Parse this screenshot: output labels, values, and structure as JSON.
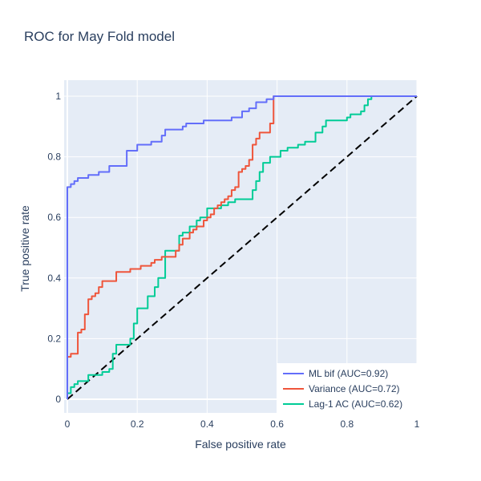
{
  "chart_data": {
    "type": "line",
    "title": "ROC for May Fold model",
    "xlabel": "False positive rate",
    "ylabel": "True positive rate",
    "xlim": [
      0,
      1
    ],
    "ylim": [
      0,
      1
    ],
    "grid": true,
    "legend_position": "bottom-right",
    "x_ticks": [
      {
        "value": 0,
        "label": "0"
      },
      {
        "value": 0.2,
        "label": "0.2"
      },
      {
        "value": 0.4,
        "label": "0.4"
      },
      {
        "value": 0.6,
        "label": "0.6"
      },
      {
        "value": 0.8,
        "label": "0.8"
      },
      {
        "value": 1,
        "label": "1"
      }
    ],
    "y_ticks": [
      {
        "value": 0,
        "label": "0"
      },
      {
        "value": 0.2,
        "label": "0.2"
      },
      {
        "value": 0.4,
        "label": "0.4"
      },
      {
        "value": 0.6,
        "label": "0.6"
      },
      {
        "value": 0.8,
        "label": "0.8"
      },
      {
        "value": 1,
        "label": "1"
      }
    ],
    "series": [
      {
        "name": "ML bif (AUC=0.92)",
        "color": "#636efa",
        "dash": "solid",
        "points": [
          [
            0,
            0
          ],
          [
            0,
            0.7
          ],
          [
            0.01,
            0.7
          ],
          [
            0.01,
            0.71
          ],
          [
            0.02,
            0.71
          ],
          [
            0.02,
            0.72
          ],
          [
            0.03,
            0.72
          ],
          [
            0.03,
            0.73
          ],
          [
            0.06,
            0.73
          ],
          [
            0.06,
            0.74
          ],
          [
            0.09,
            0.74
          ],
          [
            0.09,
            0.75
          ],
          [
            0.12,
            0.75
          ],
          [
            0.12,
            0.77
          ],
          [
            0.17,
            0.77
          ],
          [
            0.17,
            0.82
          ],
          [
            0.2,
            0.82
          ],
          [
            0.2,
            0.84
          ],
          [
            0.24,
            0.84
          ],
          [
            0.24,
            0.85
          ],
          [
            0.27,
            0.85
          ],
          [
            0.27,
            0.87
          ],
          [
            0.28,
            0.87
          ],
          [
            0.28,
            0.89
          ],
          [
            0.33,
            0.89
          ],
          [
            0.33,
            0.9
          ],
          [
            0.34,
            0.9
          ],
          [
            0.34,
            0.91
          ],
          [
            0.39,
            0.91
          ],
          [
            0.39,
            0.92
          ],
          [
            0.47,
            0.92
          ],
          [
            0.47,
            0.93
          ],
          [
            0.5,
            0.93
          ],
          [
            0.5,
            0.95
          ],
          [
            0.52,
            0.95
          ],
          [
            0.52,
            0.96
          ],
          [
            0.54,
            0.96
          ],
          [
            0.54,
            0.98
          ],
          [
            0.57,
            0.98
          ],
          [
            0.57,
            0.99
          ],
          [
            0.59,
            0.99
          ],
          [
            0.59,
            1.0
          ],
          [
            1.0,
            1.0
          ]
        ]
      },
      {
        "name": "Variance (AUC=0.72)",
        "color": "#ef553b",
        "dash": "solid",
        "points": [
          [
            0,
            0
          ],
          [
            0,
            0.14
          ],
          [
            0.01,
            0.14
          ],
          [
            0.01,
            0.15
          ],
          [
            0.03,
            0.15
          ],
          [
            0.03,
            0.22
          ],
          [
            0.04,
            0.22
          ],
          [
            0.04,
            0.23
          ],
          [
            0.05,
            0.23
          ],
          [
            0.05,
            0.28
          ],
          [
            0.06,
            0.28
          ],
          [
            0.06,
            0.33
          ],
          [
            0.07,
            0.33
          ],
          [
            0.07,
            0.34
          ],
          [
            0.08,
            0.34
          ],
          [
            0.08,
            0.35
          ],
          [
            0.09,
            0.35
          ],
          [
            0.09,
            0.37
          ],
          [
            0.1,
            0.37
          ],
          [
            0.1,
            0.39
          ],
          [
            0.14,
            0.39
          ],
          [
            0.14,
            0.42
          ],
          [
            0.18,
            0.42
          ],
          [
            0.18,
            0.43
          ],
          [
            0.21,
            0.43
          ],
          [
            0.21,
            0.44
          ],
          [
            0.24,
            0.44
          ],
          [
            0.24,
            0.45
          ],
          [
            0.25,
            0.45
          ],
          [
            0.25,
            0.46
          ],
          [
            0.27,
            0.46
          ],
          [
            0.27,
            0.47
          ],
          [
            0.31,
            0.47
          ],
          [
            0.31,
            0.49
          ],
          [
            0.32,
            0.49
          ],
          [
            0.32,
            0.51
          ],
          [
            0.33,
            0.51
          ],
          [
            0.33,
            0.53
          ],
          [
            0.35,
            0.53
          ],
          [
            0.35,
            0.55
          ],
          [
            0.36,
            0.55
          ],
          [
            0.36,
            0.56
          ],
          [
            0.37,
            0.56
          ],
          [
            0.37,
            0.57
          ],
          [
            0.39,
            0.57
          ],
          [
            0.39,
            0.59
          ],
          [
            0.4,
            0.59
          ],
          [
            0.4,
            0.6
          ],
          [
            0.41,
            0.6
          ],
          [
            0.41,
            0.61
          ],
          [
            0.42,
            0.61
          ],
          [
            0.42,
            0.63
          ],
          [
            0.43,
            0.63
          ],
          [
            0.43,
            0.64
          ],
          [
            0.44,
            0.64
          ],
          [
            0.44,
            0.65
          ],
          [
            0.45,
            0.65
          ],
          [
            0.45,
            0.66
          ],
          [
            0.46,
            0.66
          ],
          [
            0.46,
            0.67
          ],
          [
            0.47,
            0.67
          ],
          [
            0.47,
            0.69
          ],
          [
            0.48,
            0.69
          ],
          [
            0.48,
            0.7
          ],
          [
            0.49,
            0.7
          ],
          [
            0.49,
            0.75
          ],
          [
            0.5,
            0.75
          ],
          [
            0.5,
            0.76
          ],
          [
            0.51,
            0.76
          ],
          [
            0.51,
            0.77
          ],
          [
            0.52,
            0.77
          ],
          [
            0.52,
            0.79
          ],
          [
            0.53,
            0.79
          ],
          [
            0.53,
            0.84
          ],
          [
            0.54,
            0.84
          ],
          [
            0.54,
            0.86
          ],
          [
            0.55,
            0.86
          ],
          [
            0.55,
            0.88
          ],
          [
            0.58,
            0.88
          ],
          [
            0.58,
            0.91
          ],
          [
            0.59,
            0.91
          ],
          [
            0.59,
            1.0
          ],
          [
            1.0,
            1.0
          ]
        ]
      },
      {
        "name": "Lag-1 AC (AUC=0.62)",
        "color": "#00cc96",
        "dash": "solid",
        "points": [
          [
            0,
            0
          ],
          [
            0,
            0.02
          ],
          [
            0.01,
            0.02
          ],
          [
            0.01,
            0.04
          ],
          [
            0.02,
            0.04
          ],
          [
            0.02,
            0.05
          ],
          [
            0.03,
            0.05
          ],
          [
            0.03,
            0.06
          ],
          [
            0.06,
            0.06
          ],
          [
            0.06,
            0.08
          ],
          [
            0.1,
            0.08
          ],
          [
            0.1,
            0.09
          ],
          [
            0.12,
            0.09
          ],
          [
            0.12,
            0.1
          ],
          [
            0.13,
            0.1
          ],
          [
            0.13,
            0.15
          ],
          [
            0.14,
            0.15
          ],
          [
            0.14,
            0.18
          ],
          [
            0.18,
            0.18
          ],
          [
            0.18,
            0.2
          ],
          [
            0.19,
            0.2
          ],
          [
            0.19,
            0.25
          ],
          [
            0.2,
            0.25
          ],
          [
            0.2,
            0.3
          ],
          [
            0.23,
            0.3
          ],
          [
            0.23,
            0.34
          ],
          [
            0.25,
            0.34
          ],
          [
            0.25,
            0.37
          ],
          [
            0.26,
            0.37
          ],
          [
            0.26,
            0.4
          ],
          [
            0.28,
            0.4
          ],
          [
            0.28,
            0.49
          ],
          [
            0.32,
            0.49
          ],
          [
            0.32,
            0.54
          ],
          [
            0.33,
            0.54
          ],
          [
            0.33,
            0.55
          ],
          [
            0.35,
            0.55
          ],
          [
            0.35,
            0.57
          ],
          [
            0.37,
            0.57
          ],
          [
            0.37,
            0.59
          ],
          [
            0.38,
            0.59
          ],
          [
            0.38,
            0.6
          ],
          [
            0.4,
            0.6
          ],
          [
            0.4,
            0.63
          ],
          [
            0.44,
            0.63
          ],
          [
            0.44,
            0.64
          ],
          [
            0.46,
            0.64
          ],
          [
            0.46,
            0.65
          ],
          [
            0.48,
            0.65
          ],
          [
            0.48,
            0.66
          ],
          [
            0.53,
            0.66
          ],
          [
            0.53,
            0.69
          ],
          [
            0.54,
            0.69
          ],
          [
            0.54,
            0.72
          ],
          [
            0.55,
            0.72
          ],
          [
            0.55,
            0.75
          ],
          [
            0.56,
            0.75
          ],
          [
            0.56,
            0.78
          ],
          [
            0.58,
            0.78
          ],
          [
            0.58,
            0.8
          ],
          [
            0.61,
            0.8
          ],
          [
            0.61,
            0.82
          ],
          [
            0.63,
            0.82
          ],
          [
            0.63,
            0.83
          ],
          [
            0.66,
            0.83
          ],
          [
            0.66,
            0.84
          ],
          [
            0.68,
            0.84
          ],
          [
            0.68,
            0.85
          ],
          [
            0.71,
            0.85
          ],
          [
            0.71,
            0.88
          ],
          [
            0.73,
            0.88
          ],
          [
            0.73,
            0.9
          ],
          [
            0.74,
            0.9
          ],
          [
            0.74,
            0.92
          ],
          [
            0.8,
            0.92
          ],
          [
            0.8,
            0.93
          ],
          [
            0.81,
            0.93
          ],
          [
            0.81,
            0.94
          ],
          [
            0.84,
            0.94
          ],
          [
            0.84,
            0.95
          ],
          [
            0.85,
            0.95
          ],
          [
            0.85,
            0.97
          ],
          [
            0.86,
            0.97
          ],
          [
            0.86,
            0.99
          ],
          [
            0.87,
            0.99
          ],
          [
            0.87,
            1.0
          ],
          [
            1.0,
            1.0
          ]
        ]
      },
      {
        "name": "",
        "color": "#000000",
        "dash": "dash",
        "points": [
          [
            0,
            0
          ],
          [
            1,
            1
          ]
        ]
      }
    ]
  }
}
